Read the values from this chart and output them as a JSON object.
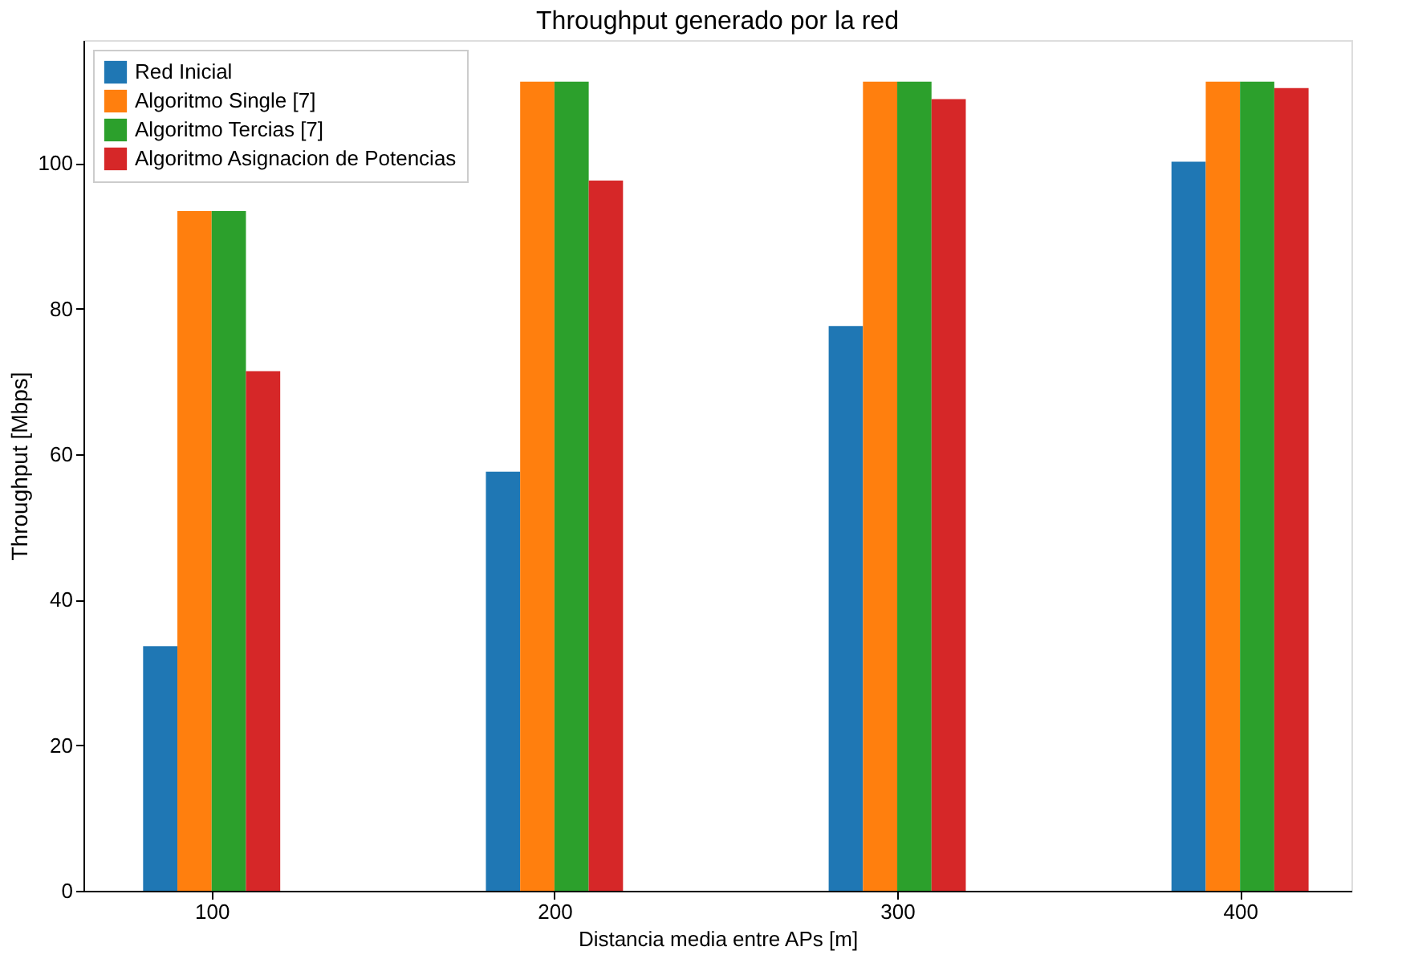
{
  "chart_data": {
    "type": "bar",
    "title": "Throughput generado por la red",
    "xlabel": "Distancia media entre APs [m]",
    "ylabel": "Throughput [Mbps]",
    "x": [
      100,
      200,
      300,
      400
    ],
    "series": [
      {
        "name": "Red Inicial",
        "color": "#1f77b4",
        "values": [
          33.6,
          57.6,
          77.6,
          100.2
        ]
      },
      {
        "name": "Algoritmo Single [7]",
        "color": "#ff7f0e",
        "values": [
          93.4,
          111.2,
          111.2,
          111.2
        ]
      },
      {
        "name": "Algoritmo Tercias [7]",
        "color": "#2ca02c",
        "values": [
          93.4,
          111.2,
          111.2,
          111.2
        ]
      },
      {
        "name": "Algoritmo Asignacion de Potencias",
        "color": "#d62728",
        "values": [
          71.4,
          97.6,
          108.8,
          110.3
        ]
      }
    ],
    "xlim": [
      62.6,
      432.5
    ],
    "xticks": [
      100,
      200,
      300,
      400
    ],
    "ylim": [
      0,
      116.9
    ],
    "yticks": [
      0,
      20,
      40,
      60,
      80,
      100
    ],
    "grid": false,
    "legend": "top left"
  }
}
